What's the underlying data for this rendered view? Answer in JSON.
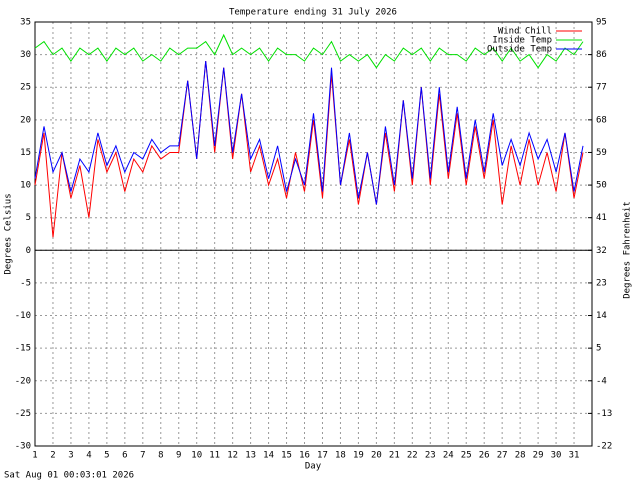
{
  "chart_data": {
    "type": "line",
    "title": "Temperature ending 31 July 2026",
    "x_label": "Day",
    "y_label": "Degrees Celsius",
    "y2_label": "Degrees Fahrenheit",
    "footer": "Sat Aug 01 00:03:01 2026",
    "x": [
      1,
      1.5,
      2,
      2.5,
      3,
      3.5,
      4,
      4.5,
      5,
      5.5,
      6,
      6.5,
      7,
      7.5,
      8,
      8.5,
      9,
      9.5,
      10,
      10.5,
      11,
      11.5,
      12,
      12.5,
      13,
      13.5,
      14,
      14.5,
      15,
      15.5,
      16,
      16.5,
      17,
      17.5,
      18,
      18.5,
      19,
      19.5,
      20,
      20.5,
      21,
      21.5,
      22,
      22.5,
      23,
      23.5,
      24,
      24.5,
      25,
      25.5,
      26,
      26.5,
      27,
      27.5,
      28,
      28.5,
      29,
      29.5,
      30,
      30.5,
      31,
      31.5
    ],
    "series": [
      {
        "name": "Wind Chill",
        "color": "#ff0000",
        "values": [
          10,
          18,
          2,
          15,
          8,
          13,
          5,
          17,
          12,
          15,
          9,
          14,
          12,
          16,
          14,
          15,
          15,
          26,
          14,
          29,
          15,
          28,
          14,
          24,
          12,
          16,
          10,
          14,
          8,
          15,
          9,
          20,
          8,
          27,
          10,
          17,
          7,
          15,
          7,
          18,
          9,
          23,
          10,
          25,
          10,
          24,
          11,
          21,
          10,
          19,
          11,
          20,
          7,
          16,
          10,
          17,
          10,
          15,
          9,
          18,
          8,
          15
        ]
      },
      {
        "name": "Inside Temp",
        "color": "#00e000",
        "values": [
          31,
          32,
          30,
          31,
          29,
          31,
          30,
          31,
          29,
          31,
          30,
          31,
          29,
          30,
          29,
          31,
          30,
          31,
          31,
          32,
          30,
          33,
          30,
          31,
          30,
          31,
          29,
          31,
          30,
          30,
          29,
          31,
          30,
          32,
          29,
          30,
          29,
          30,
          28,
          30,
          29,
          31,
          30,
          31,
          29,
          31,
          30,
          30,
          29,
          31,
          30,
          31,
          29,
          31,
          29,
          30,
          28,
          30,
          29,
          31,
          30,
          32
        ]
      },
      {
        "name": "Outside Temp",
        "color": "#0000ff",
        "values": [
          11,
          19,
          12,
          15,
          9,
          14,
          12,
          18,
          13,
          16,
          12,
          15,
          14,
          17,
          15,
          16,
          16,
          26,
          14,
          29,
          16,
          28,
          15,
          24,
          14,
          17,
          11,
          16,
          9,
          14,
          10,
          21,
          9,
          28,
          10,
          18,
          8,
          15,
          7,
          19,
          10,
          23,
          11,
          25,
          11,
          25,
          12,
          22,
          11,
          20,
          12,
          21,
          13,
          17,
          13,
          18,
          14,
          17,
          12,
          18,
          9,
          16
        ]
      }
    ],
    "xlim": [
      1,
      32
    ],
    "xticks": [
      1,
      2,
      3,
      4,
      5,
      6,
      7,
      8,
      9,
      10,
      11,
      12,
      13,
      14,
      15,
      16,
      17,
      18,
      19,
      20,
      21,
      22,
      23,
      24,
      25,
      26,
      27,
      28,
      29,
      30,
      31
    ],
    "ylim": [
      -30,
      35
    ],
    "yticks": [
      -30,
      -25,
      -20,
      -15,
      -10,
      -5,
      0,
      5,
      10,
      15,
      20,
      25,
      30,
      35
    ],
    "y2lim": [
      -22,
      95
    ],
    "y2ticks": [
      -22,
      -13,
      -4,
      5,
      14,
      23,
      32,
      41,
      50,
      59,
      68,
      77,
      86,
      95
    ],
    "grid": true,
    "legend": "top-right"
  }
}
